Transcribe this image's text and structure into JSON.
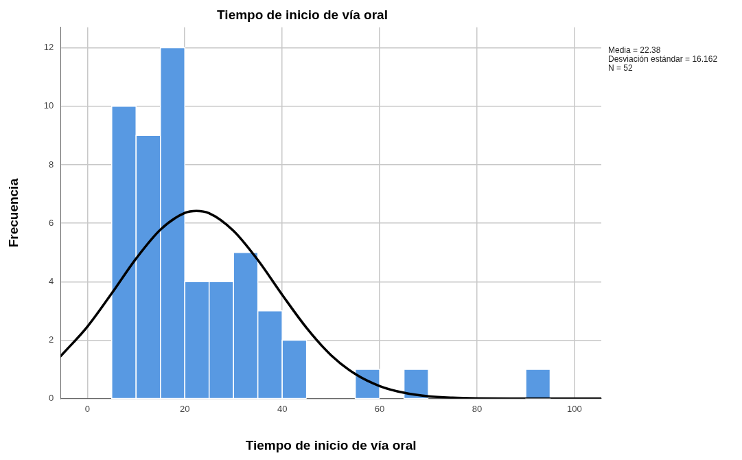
{
  "chart_data": {
    "type": "histogram",
    "title": "Tiempo de inicio de vía oral",
    "xlabel": "Tiempo de inicio de vía oral",
    "ylabel": "Frecuencia",
    "bins": [
      5,
      10,
      15,
      20,
      25,
      30,
      35,
      40,
      45,
      50,
      55,
      60,
      65,
      70,
      75,
      80,
      85,
      90,
      95
    ],
    "values": [
      10,
      9,
      12,
      4,
      4,
      5,
      3,
      2,
      0,
      0,
      1,
      0,
      1,
      0,
      0,
      0,
      0,
      1
    ],
    "color": "#5899e2",
    "series": [
      {
        "type": "line",
        "color": "#000000",
        "x": [
          -5.5,
          0,
          5,
          10,
          15,
          20,
          22.38,
          25,
          30,
          35,
          40,
          45,
          50,
          55,
          60,
          65,
          70,
          75,
          80,
          90,
          105.5
        ],
        "values": [
          1.45,
          2.46,
          3.6,
          4.79,
          5.78,
          6.35,
          6.42,
          6.34,
          5.74,
          4.74,
          3.55,
          2.42,
          1.49,
          0.84,
          0.43,
          0.2,
          0.08,
          0.03,
          0.01,
          0,
          0
        ]
      }
    ],
    "xlim": [
      -5.5,
      105.5
    ],
    "xticks": [
      0,
      20,
      40,
      60,
      80,
      100
    ],
    "ylim": [
      0,
      12.7
    ],
    "yticks": [
      0,
      2,
      4,
      6,
      8,
      10,
      12
    ],
    "grid": true,
    "legend": false,
    "annotations": [
      "Media = 22.38",
      "Desviación estándar = 16.162",
      "N = 52"
    ]
  }
}
